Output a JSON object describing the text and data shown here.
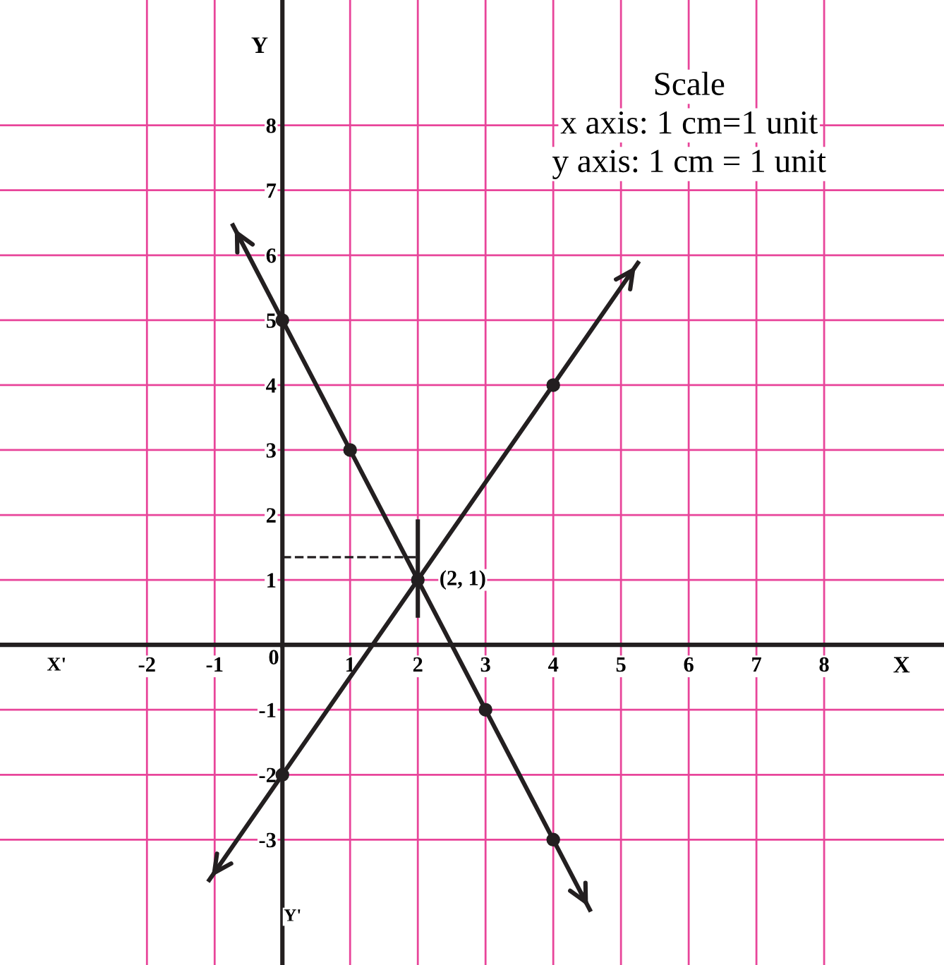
{
  "chart_data": {
    "type": "line",
    "xlabel": "X",
    "ylabel": "Y",
    "xlim": [
      -4.17,
      9.77
    ],
    "ylim": [
      -4.93,
      9.93
    ],
    "xticks": [
      -2,
      -1,
      1,
      2,
      3,
      4,
      5,
      6,
      7,
      8
    ],
    "yticks": [
      -3,
      -2,
      -1,
      1,
      2,
      3,
      4,
      5,
      6,
      7,
      8
    ],
    "grid": true,
    "series": [
      {
        "type": "line",
        "color": "#231f20",
        "x": [
          -1.08,
          5.25
        ],
        "values": [
          -3.62,
          5.88
        ]
      },
      {
        "type": "line",
        "color": "#231f20",
        "x": [
          -0.73,
          4.54
        ],
        "values": [
          6.46,
          -4.08
        ]
      },
      {
        "type": "line",
        "color": "#231f20",
        "line_style": "dashed",
        "x": [
          0,
          2
        ],
        "values": [
          1.35,
          1.35
        ]
      },
      {
        "type": "line",
        "color": "#231f20",
        "x": [
          2,
          2
        ],
        "values": [
          1.9,
          0.45
        ]
      },
      {
        "type": "scatter",
        "color": "#231f20",
        "marker": "circle",
        "x": [
          0,
          4,
          2,
          0,
          1,
          3,
          4
        ],
        "values": [
          -2,
          4,
          1,
          5,
          3,
          -1,
          -3
        ]
      }
    ],
    "annotations": [
      "X'",
      "Y'",
      "0",
      "Scale",
      "x axis: 1 cm=1 unit",
      "y axis: 1 cm = 1 unit",
      {
        "text": "(2, 1)",
        "x": 2,
        "y": 1
      }
    ]
  }
}
